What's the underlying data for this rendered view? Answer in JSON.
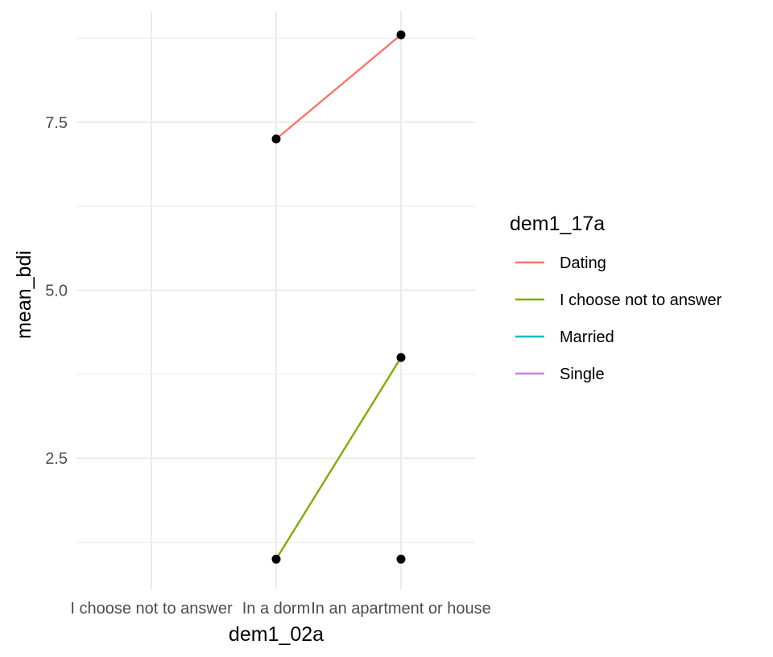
{
  "chart_data": {
    "type": "line",
    "xlabel": "dem1_02a",
    "ylabel": "mean_bdi",
    "categories": [
      "I choose not to answer",
      "In a dorm",
      "In an apartment or house"
    ],
    "ylim": [
      0.55,
      9.15
    ],
    "y_ticks": [
      2.5,
      5.0,
      7.5
    ],
    "y_tick_labels": [
      "2.5",
      "5.0",
      "7.5"
    ],
    "grid": true,
    "legend": {
      "title": "dem1_17a",
      "position": "right"
    },
    "series": [
      {
        "name": "Dating",
        "color": "#F8766D",
        "values": [
          null,
          7.25,
          8.8
        ]
      },
      {
        "name": "I choose not to answer",
        "color": "#7CAE00",
        "values": [
          null,
          1.0,
          4.0
        ]
      },
      {
        "name": "Married",
        "color": "#00BFC4",
        "values": [
          null,
          null,
          null
        ]
      },
      {
        "name": "Single",
        "color": "#C77CFF",
        "values": [
          null,
          null,
          1.0
        ]
      }
    ],
    "point_color": "#000000"
  }
}
